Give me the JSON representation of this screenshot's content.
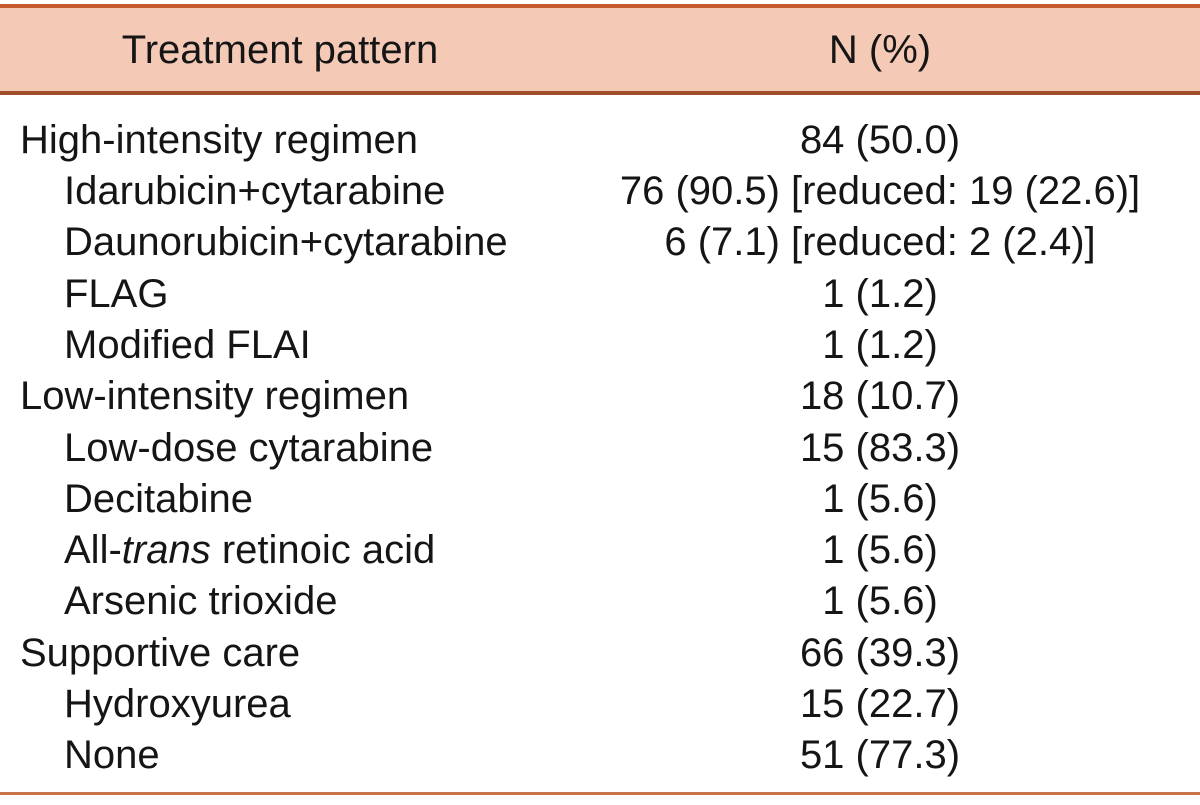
{
  "table": {
    "header": {
      "treatment_pattern": "Treatment pattern",
      "n_percent": "N (%)"
    },
    "rows": [
      {
        "label_prefix": "High-intensity regimen",
        "label_italic": "",
        "label_suffix": "",
        "value": "84 (50.0)",
        "indent": false
      },
      {
        "label_prefix": "Idarubicin+cytarabine",
        "label_italic": "",
        "label_suffix": "",
        "value": "76 (90.5) [reduced: 19 (22.6)]",
        "indent": true
      },
      {
        "label_prefix": "Daunorubicin+cytarabine",
        "label_italic": "",
        "label_suffix": "",
        "value": "6 (7.1) [reduced: 2 (2.4)]",
        "indent": true
      },
      {
        "label_prefix": "FLAG",
        "label_italic": "",
        "label_suffix": "",
        "value": "1 (1.2)",
        "indent": true
      },
      {
        "label_prefix": "Modified FLAI",
        "label_italic": "",
        "label_suffix": "",
        "value": "1 (1.2)",
        "indent": true
      },
      {
        "label_prefix": "Low-intensity regimen",
        "label_italic": "",
        "label_suffix": "",
        "value": "18 (10.7)",
        "indent": false
      },
      {
        "label_prefix": "Low-dose cytarabine",
        "label_italic": "",
        "label_suffix": "",
        "value": "15 (83.3)",
        "indent": true
      },
      {
        "label_prefix": "Decitabine",
        "label_italic": "",
        "label_suffix": "",
        "value": "1 (5.6)",
        "indent": true
      },
      {
        "label_prefix": "All-",
        "label_italic": "trans",
        "label_suffix": " retinoic acid",
        "value": "1 (5.6)",
        "indent": true
      },
      {
        "label_prefix": "Arsenic trioxide",
        "label_italic": "",
        "label_suffix": "",
        "value": "1 (5.6)",
        "indent": true
      },
      {
        "label_prefix": "Supportive care",
        "label_italic": "",
        "label_suffix": "",
        "value": "66 (39.3)",
        "indent": false
      },
      {
        "label_prefix": "Hydroxyurea",
        "label_italic": "",
        "label_suffix": "",
        "value": "15 (22.7)",
        "indent": true
      },
      {
        "label_prefix": "None",
        "label_italic": "",
        "label_suffix": "",
        "value": "51 (77.3)",
        "indent": true
      }
    ]
  },
  "colors": {
    "header_bg": "#f4c9b6",
    "rule_top": "#c55b2d",
    "rule_mid": "#9e4e2a",
    "rule_bottom": "#c7744a",
    "text": "#151515",
    "page_bg": "#ffffff"
  }
}
